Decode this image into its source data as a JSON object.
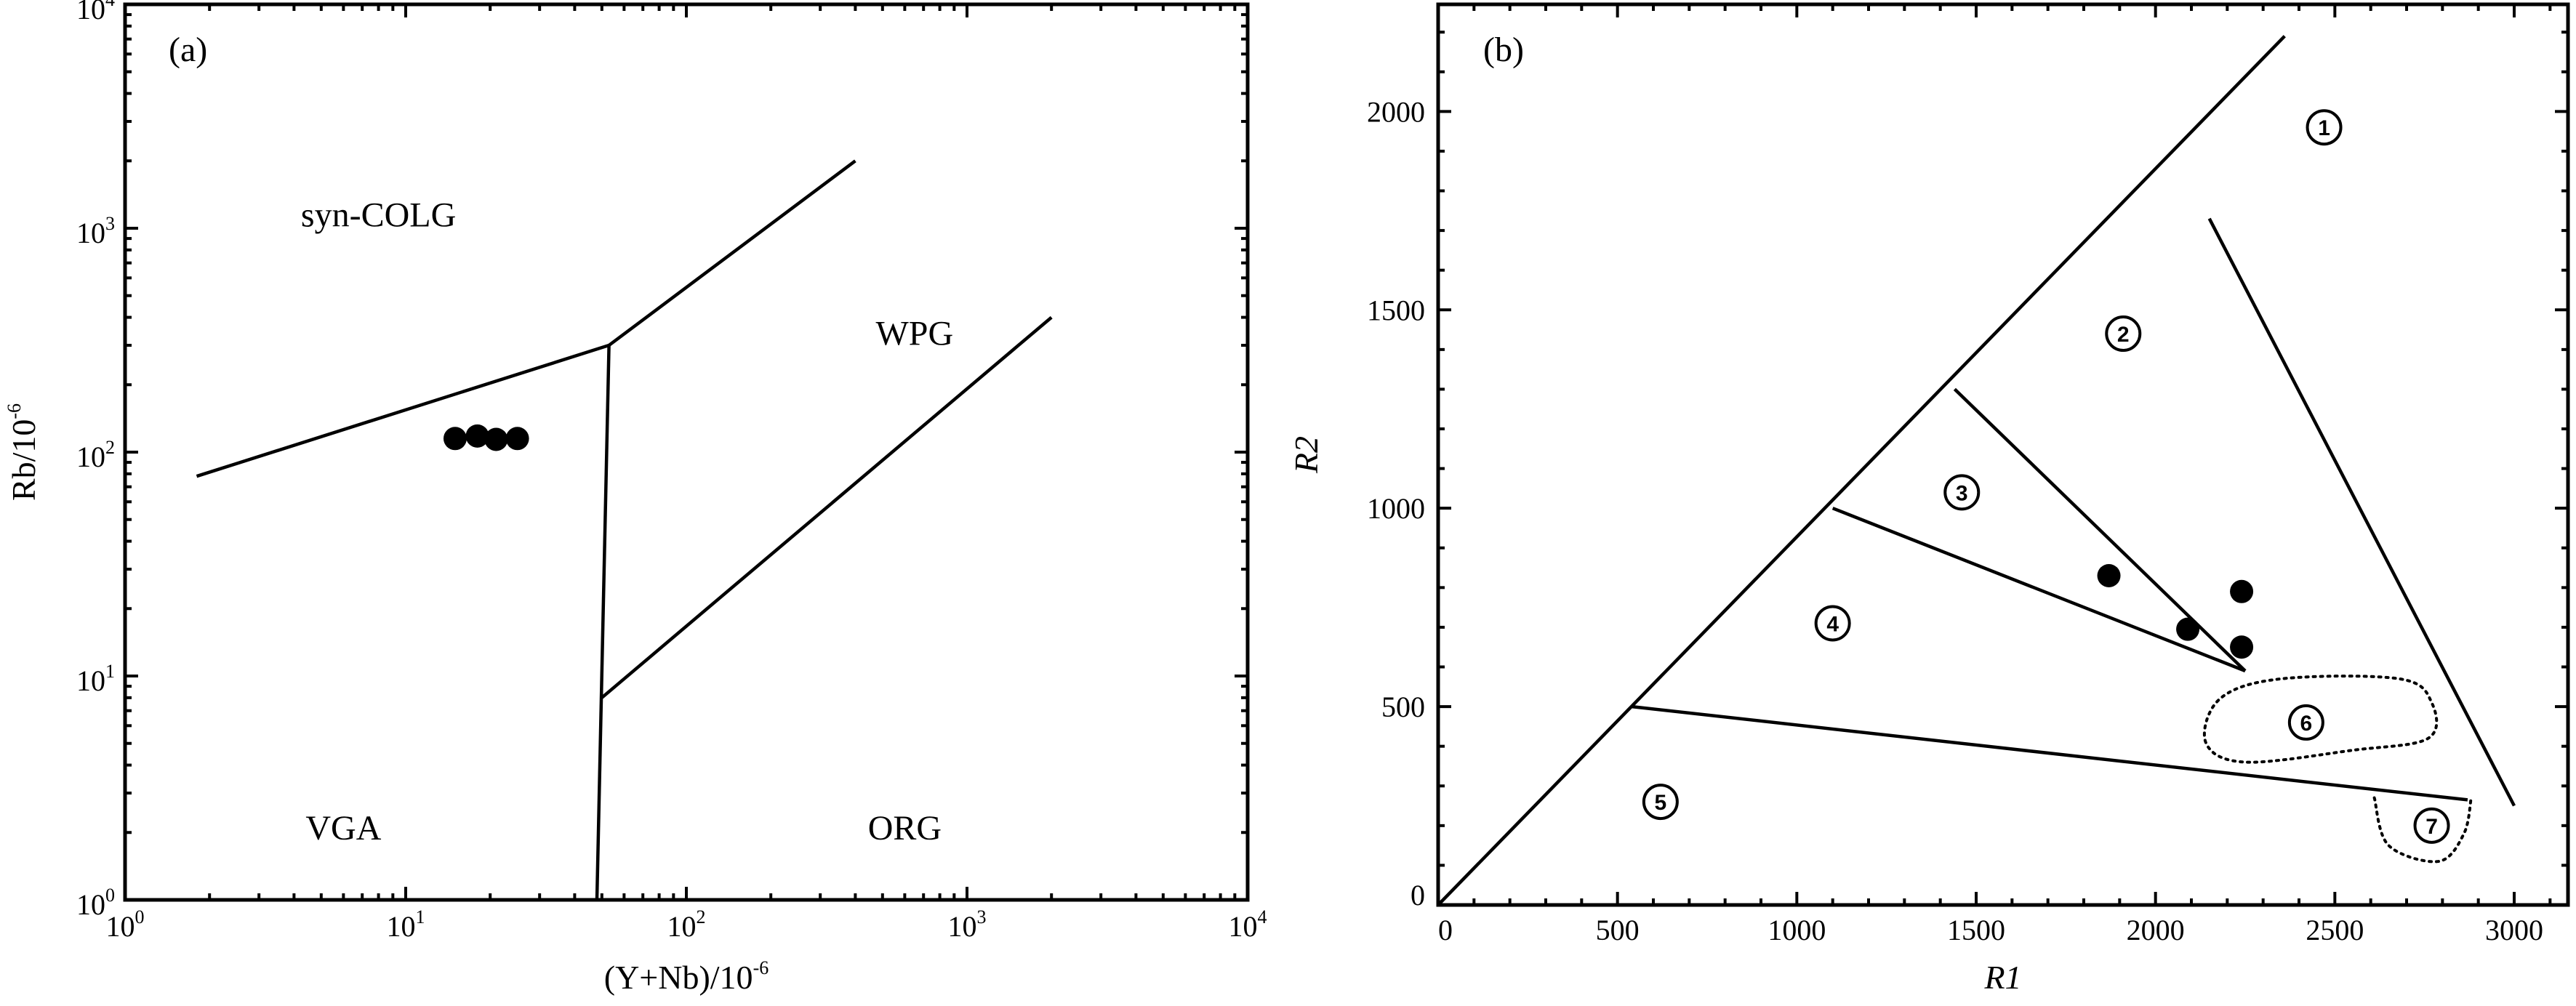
{
  "chart_data": [
    {
      "type": "scatter",
      "panel_label": "(a)",
      "xlabel": {
        "base": "(Y+Nb)/10",
        "exp": "-6"
      },
      "ylabel": {
        "base": "Rb/10",
        "exp": "-6"
      },
      "x_scale": "log",
      "y_scale": "log",
      "xlim": [
        1,
        10000
      ],
      "ylim": [
        1,
        10000
      ],
      "xticks": [
        {
          "value": 1,
          "base": "10",
          "exp": "0"
        },
        {
          "value": 10,
          "base": "10",
          "exp": "1"
        },
        {
          "value": 100,
          "base": "10",
          "exp": "2"
        },
        {
          "value": 1000,
          "base": "10",
          "exp": "3"
        },
        {
          "value": 10000,
          "base": "10",
          "exp": "4"
        }
      ],
      "yticks": [
        {
          "value": 1,
          "base": "10",
          "exp": "0"
        },
        {
          "value": 10,
          "base": "10",
          "exp": "1"
        },
        {
          "value": 100,
          "base": "10",
          "exp": "2"
        },
        {
          "value": 1000,
          "base": "10",
          "exp": "3"
        },
        {
          "value": 10000,
          "base": "10",
          "exp": "4"
        }
      ],
      "boundaries": [
        [
          [
            1.8,
            78
          ],
          [
            53,
            300
          ],
          [
            400,
            2000
          ]
        ],
        [
          [
            53,
            300
          ],
          [
            48,
            1
          ]
        ],
        [
          [
            50,
            8
          ],
          [
            2000,
            400
          ]
        ]
      ],
      "regions": [
        {
          "label": "syn-COLG",
          "x": 8,
          "y": 1150
        },
        {
          "label": "WPG",
          "x": 650,
          "y": 340
        },
        {
          "label": "VGA",
          "x": 6,
          "y": 2.1
        },
        {
          "label": "ORG",
          "x": 600,
          "y": 2.1
        }
      ],
      "points": [
        {
          "x": 15,
          "y": 115
        },
        {
          "x": 18,
          "y": 118
        },
        {
          "x": 21,
          "y": 114
        },
        {
          "x": 25,
          "y": 115
        }
      ],
      "grid": false,
      "legend": "none"
    },
    {
      "type": "scatter",
      "panel_label": "(b)",
      "xlabel": "R1",
      "ylabel": "R2",
      "xlim": [
        0,
        3150
      ],
      "ylim": [
        0,
        2270
      ],
      "xticks": [
        0,
        500,
        1000,
        1500,
        2000,
        2500,
        3000
      ],
      "yticks": [
        0,
        500,
        1000,
        1500,
        2000
      ],
      "boundaries": [
        [
          [
            0,
            0
          ],
          [
            2360,
            2190
          ]
        ],
        [
          [
            540,
            500
          ],
          [
            2870,
            265
          ]
        ],
        [
          [
            1100,
            1000
          ],
          [
            2250,
            590
          ]
        ],
        [
          [
            1440,
            1300
          ],
          [
            2250,
            590
          ]
        ],
        [
          [
            2150,
            1730
          ],
          [
            3000,
            250
          ]
        ]
      ],
      "fields": [
        {
          "id": "6",
          "style": "dotted",
          "outline": [
            [
              2140,
              410
            ],
            [
              2180,
              520
            ],
            [
              2350,
              570
            ],
            [
              2680,
              570
            ],
            [
              2770,
              510
            ],
            [
              2760,
              420
            ],
            [
              2550,
              390
            ],
            [
              2250,
              360
            ]
          ]
        },
        {
          "id": "7",
          "style": "dotted",
          "outline": [
            [
              2610,
              270
            ],
            [
              2650,
              150
            ],
            [
              2790,
              110
            ],
            [
              2860,
              180
            ],
            [
              2880,
              270
            ]
          ]
        }
      ],
      "regions": [
        {
          "label": "1",
          "x": 2470,
          "y": 1960
        },
        {
          "label": "2",
          "x": 1910,
          "y": 1440
        },
        {
          "label": "3",
          "x": 1460,
          "y": 1040
        },
        {
          "label": "4",
          "x": 1100,
          "y": 710
        },
        {
          "label": "5",
          "x": 620,
          "y": 260
        },
        {
          "label": "6",
          "x": 2420,
          "y": 460
        },
        {
          "label": "7",
          "x": 2770,
          "y": 200
        }
      ],
      "points": [
        {
          "x": 1870,
          "y": 830
        },
        {
          "x": 2240,
          "y": 790
        },
        {
          "x": 2090,
          "y": 695
        },
        {
          "x": 2240,
          "y": 650
        }
      ],
      "grid": false,
      "legend": "none"
    }
  ]
}
